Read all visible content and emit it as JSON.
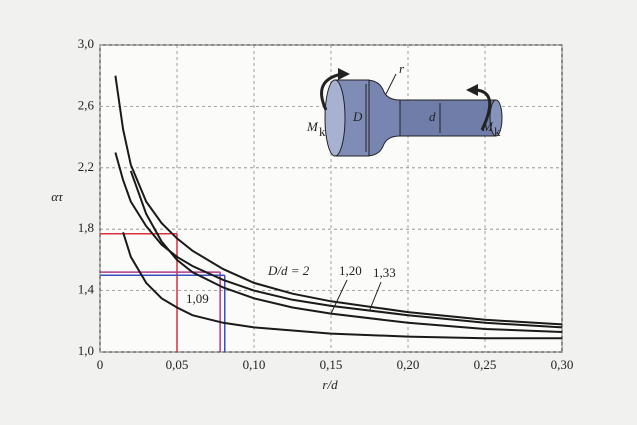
{
  "chart_data": {
    "type": "line",
    "x_label": "r/d",
    "y_label": "ατ",
    "x": [
      0.01,
      0.015,
      0.02,
      0.03,
      0.04,
      0.05,
      0.06,
      0.08,
      0.1,
      0.125,
      0.15,
      0.2,
      0.25,
      0.3
    ],
    "series": [
      {
        "name": "D/d = 2",
        "color": "#1a1a1a",
        "values": [
          2.8,
          2.45,
          2.22,
          1.98,
          1.84,
          1.74,
          1.66,
          1.54,
          1.45,
          1.38,
          1.33,
          1.26,
          1.21,
          1.18
        ]
      },
      {
        "name": "1,33",
        "color": "#1a1a1a",
        "values": [
          2.3,
          2.12,
          1.98,
          1.82,
          1.7,
          1.62,
          1.56,
          1.47,
          1.4,
          1.34,
          1.3,
          1.24,
          1.19,
          1.16
        ]
      },
      {
        "name": "1,20",
        "color": "#1a1a1a",
        "values": [
          null,
          null,
          2.18,
          1.9,
          1.72,
          1.6,
          1.52,
          1.42,
          1.35,
          1.29,
          1.25,
          1.19,
          1.15,
          1.13
        ]
      },
      {
        "name": "1,09",
        "color": "#1a1a1a",
        "values": [
          null,
          1.78,
          1.62,
          1.45,
          1.35,
          1.29,
          1.24,
          1.19,
          1.16,
          1.14,
          1.12,
          1.1,
          1.09,
          1.09
        ]
      }
    ],
    "reference_lines": [
      {
        "x": 0.05,
        "y": 1.77,
        "color": "#d8323c"
      },
      {
        "x": 0.078,
        "y": 1.52,
        "color": "#b03a8a"
      },
      {
        "x": 0.081,
        "y": 1.5,
        "color": "#3b4fc0"
      }
    ],
    "xlim": [
      0,
      0.3
    ],
    "ylim": [
      1.0,
      3.0
    ],
    "xticks": [
      {
        "value": 0,
        "label": "0"
      },
      {
        "value": 0.05,
        "label": "0,05"
      },
      {
        "value": 0.1,
        "label": "0,10"
      },
      {
        "value": 0.15,
        "label": "0,15"
      },
      {
        "value": 0.2,
        "label": "0,20"
      },
      {
        "value": 0.25,
        "label": "0,25"
      },
      {
        "value": 0.3,
        "label": "0,30"
      }
    ],
    "yticks": [
      {
        "value": 1.0,
        "label": "1,0"
      },
      {
        "value": 1.4,
        "label": "1,4"
      },
      {
        "value": 1.8,
        "label": "1,8"
      },
      {
        "value": 2.2,
        "label": "2,2"
      },
      {
        "value": 2.6,
        "label": "2,6"
      },
      {
        "value": 3.0,
        "label": "3,0"
      }
    ],
    "grid": true,
    "inset": {
      "moment": "M",
      "moment_sub": "k",
      "big_diameter": "D",
      "small_diameter": "d",
      "radius": "r"
    }
  }
}
